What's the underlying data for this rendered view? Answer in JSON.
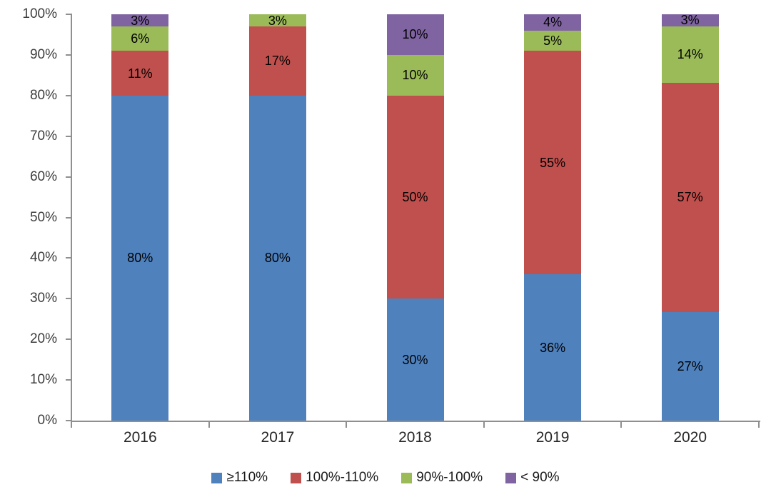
{
  "chart_data": {
    "type": "bar",
    "variant": "stacked-100-percent",
    "title": "",
    "xlabel": "",
    "ylabel": "",
    "grid": false,
    "legend_position": "bottom",
    "categories": [
      "2016",
      "2017",
      "2018",
      "2019",
      "2020"
    ],
    "series": [
      {
        "name": "≥110%",
        "color": "#4F81BD",
        "values": [
          80,
          80,
          30,
          36,
          27
        ],
        "labels": [
          "80%",
          "80%",
          "30%",
          "36%",
          "27%"
        ]
      },
      {
        "name": "100%-110%",
        "color": "#C0504D",
        "values": [
          11,
          17,
          50,
          55,
          57
        ],
        "labels": [
          "11%",
          "17%",
          "50%",
          "55%",
          "57%"
        ]
      },
      {
        "name": "90%-100%",
        "color": "#9BBB59",
        "values": [
          6,
          3,
          10,
          5,
          14
        ],
        "labels": [
          "6%",
          "3%",
          "10%",
          "5%",
          "14%"
        ]
      },
      {
        "name": "< 90%",
        "color": "#8064A2",
        "values": [
          3,
          0,
          10,
          4,
          3
        ],
        "labels": [
          "3%",
          "",
          "10%",
          "4%",
          "3%"
        ]
      }
    ],
    "y_axis": {
      "min": 0,
      "max": 100,
      "tick_labels": [
        "100%",
        "90%",
        "80%",
        "70%",
        "60%",
        "50%",
        "40%",
        "30%",
        "20%",
        "10%",
        "0%"
      ]
    }
  }
}
